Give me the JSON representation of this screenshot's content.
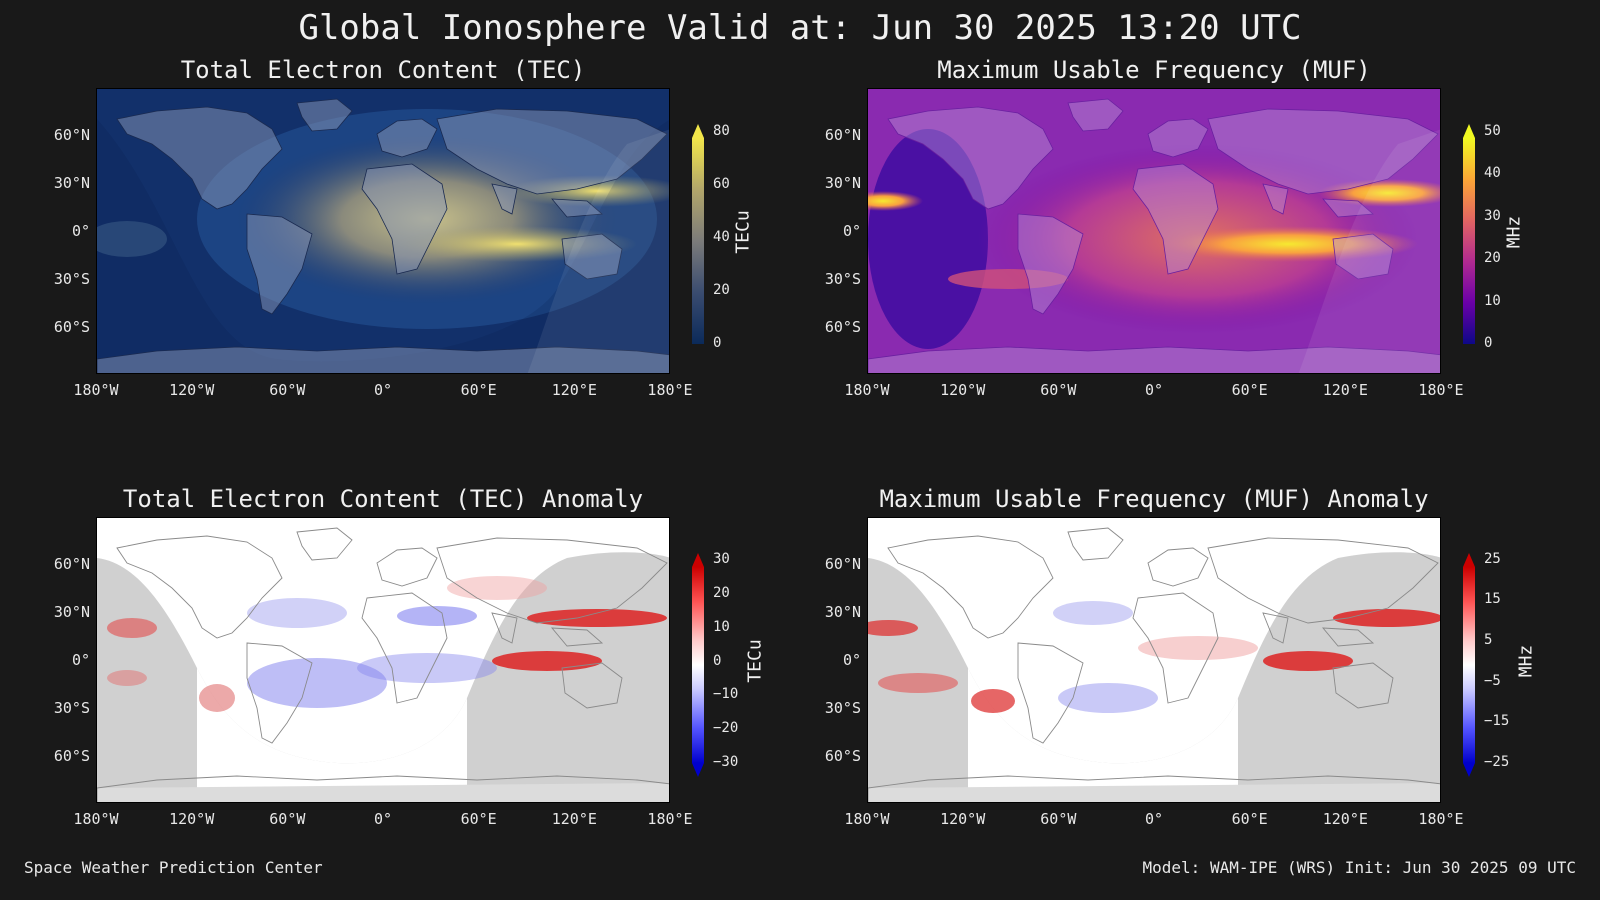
{
  "title": "Global Ionosphere Valid at: Jun 30 2025 13:20 UTC",
  "x_ticks": [
    "180°W",
    "120°W",
    "60°W",
    "0°",
    "60°E",
    "120°E",
    "180°E"
  ],
  "y_ticks": [
    "60°N",
    "30°N",
    "0°",
    "30°S",
    "60°S"
  ],
  "panels": [
    {
      "title": "Total Electron Content (TEC)",
      "colormap": "cividis",
      "colorbar": {
        "label": "TECu",
        "ticks": [
          "80",
          "60",
          "40",
          "20",
          "0"
        ],
        "colors": [
          "#f2e64a",
          "#b2a66a",
          "#7c7c7a",
          "#44506e",
          "#11285a",
          "#003a3a"
        ]
      }
    },
    {
      "title": "Maximum Usable Frequency (MUF)",
      "colormap": "plasma",
      "colorbar": {
        "label": "MHz",
        "ticks": [
          "50",
          "40",
          "30",
          "20",
          "10",
          "0"
        ],
        "colors": [
          "#f0f921",
          "#fca636",
          "#e16462",
          "#b12a90",
          "#6a00a8",
          "#0d0887"
        ]
      }
    },
    {
      "title": "Total Electron Content (TEC) Anomaly",
      "colormap": "bwr",
      "colorbar": {
        "label": "TECu",
        "ticks": [
          "30",
          "20",
          "10",
          "0",
          "−10",
          "−20",
          "−30"
        ],
        "colors": [
          "#cc0000",
          "#ff5555",
          "#ffcccc",
          "#ffffff",
          "#ccccff",
          "#5555ff",
          "#0000cc"
        ]
      }
    },
    {
      "title": "Maximum Usable Frequency (MUF) Anomaly",
      "colormap": "bwr",
      "colorbar": {
        "label": "MHz",
        "ticks": [
          "25",
          "15",
          "5",
          "−5",
          "−15",
          "−25"
        ],
        "colors": [
          "#cc0000",
          "#ff5555",
          "#ffcccc",
          "#ffffff",
          "#ccccff",
          "#5555ff",
          "#0000cc"
        ]
      }
    }
  ],
  "footer_left": "Space Weather Prediction Center",
  "footer_right": "Model: WAM-IPE (WRS) Init: Jun 30 2025 09 UTC"
}
